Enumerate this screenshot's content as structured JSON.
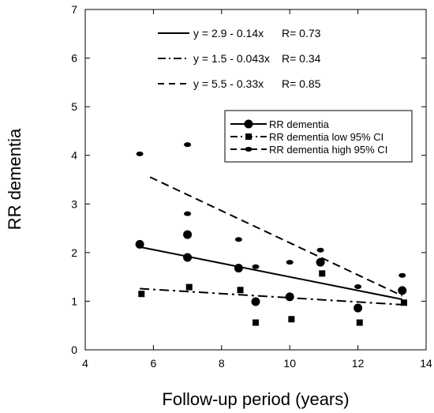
{
  "chart_data": {
    "type": "scatter",
    "xlabel": "Follow-up period (years)",
    "ylabel": "RR dementia",
    "xlim": [
      4,
      14
    ],
    "ylim": [
      0,
      7
    ],
    "xticks": [
      4,
      6,
      8,
      10,
      12,
      14
    ],
    "yticks": [
      0,
      1,
      2,
      3,
      4,
      5,
      6,
      7
    ],
    "grid": false,
    "legend_position": "right",
    "legend": [
      {
        "label": "RR dementia",
        "marker": "circle-large",
        "line": "solid"
      },
      {
        "label": "RR dementia low 95% CI",
        "marker": "square",
        "line": "dashdot"
      },
      {
        "label": "RR dementia high 95% CI",
        "marker": "ellipse",
        "line": "dashed"
      }
    ],
    "series": [
      {
        "name": "RR dementia",
        "marker": "circle-large",
        "line": "solid",
        "x": [
          5.6,
          7.0,
          7.0,
          8.5,
          9.0,
          10.0,
          10.9,
          12.0,
          13.3
        ],
        "y": [
          2.17,
          2.37,
          1.9,
          1.68,
          0.99,
          1.09,
          1.8,
          0.86,
          1.22
        ]
      },
      {
        "name": "RR dementia low 95% CI",
        "marker": "square",
        "line": "dashdot",
        "x": [
          5.65,
          7.05,
          8.55,
          9.0,
          10.05,
          10.95,
          12.05,
          13.35
        ],
        "y": [
          1.15,
          1.29,
          1.23,
          0.56,
          0.63,
          1.57,
          0.56,
          0.97
        ]
      },
      {
        "name": "RR dementia high 95% CI",
        "marker": "ellipse",
        "line": "dashed",
        "x": [
          5.6,
          7.0,
          7.0,
          8.5,
          9.0,
          10.0,
          10.9,
          12.0,
          13.3
        ],
        "y": [
          4.03,
          4.22,
          2.8,
          2.27,
          1.71,
          1.8,
          2.05,
          1.3,
          1.53
        ]
      }
    ],
    "regressions": [
      {
        "equation": "y = 2.9 - 0.14x",
        "r": "R= 0.73",
        "intercept": 2.9,
        "slope": -0.14,
        "style": "solid",
        "x_range": [
          5.6,
          13.3
        ]
      },
      {
        "equation": "y = 1.5 - 0.043x",
        "r": "R= 0.34",
        "intercept": 1.5,
        "slope": -0.043,
        "style": "dashdot",
        "x_range": [
          5.6,
          13.3
        ]
      },
      {
        "equation": "y = 5.5 - 0.33x",
        "r": "R= 0.85",
        "intercept": 5.5,
        "slope": -0.33,
        "style": "dashed",
        "x_range": [
          5.9,
          13.3
        ]
      }
    ]
  }
}
